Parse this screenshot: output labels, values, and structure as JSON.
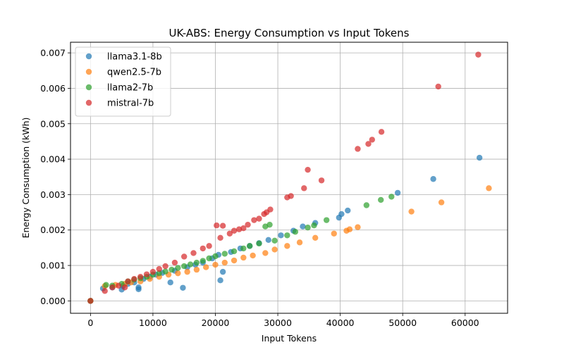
{
  "chart_data": {
    "type": "scatter",
    "title": "UK-ABS: Energy Consumption vs Input Tokens",
    "xlabel": "Input Tokens",
    "ylabel": "Energy Consumption (kWh)",
    "xlim": [
      -3200,
      66800
    ],
    "ylim": [
      -0.00035,
      0.0073
    ],
    "xticks": [
      0,
      10000,
      20000,
      30000,
      40000,
      50000,
      60000
    ],
    "xtick_labels": [
      "0",
      "10000",
      "20000",
      "30000",
      "40000",
      "50000",
      "60000"
    ],
    "yticks": [
      0,
      0.001,
      0.002,
      0.003,
      0.004,
      0.005,
      0.006,
      0.007
    ],
    "ytick_labels": [
      "0.000",
      "0.001",
      "0.002",
      "0.003",
      "0.004",
      "0.005",
      "0.006",
      "0.007"
    ],
    "grid": true,
    "legend_position": "top-left",
    "series": [
      {
        "name": "llama3.1-8b",
        "color": "#1f77b4",
        "points": [
          [
            0,
            0
          ],
          [
            2000,
            0.00035
          ],
          [
            3500,
            0.00038
          ],
          [
            5000,
            0.00032
          ],
          [
            5200,
            0.00042
          ],
          [
            6000,
            0.00048
          ],
          [
            7000,
            0.00052
          ],
          [
            7700,
            0.00033
          ],
          [
            7700,
            0.00038
          ],
          [
            8500,
            0.00062
          ],
          [
            9500,
            0.00068
          ],
          [
            10500,
            0.00074
          ],
          [
            11500,
            0.00079
          ],
          [
            12800,
            0.00052
          ],
          [
            13500,
            0.00085
          ],
          [
            14800,
            0.00037
          ],
          [
            15500,
            0.00095
          ],
          [
            16800,
            0.00102
          ],
          [
            18000,
            0.00108
          ],
          [
            19500,
            0.0012
          ],
          [
            20500,
            0.0013
          ],
          [
            20800,
            0.00058
          ],
          [
            21200,
            0.00082
          ],
          [
            22500,
            0.00138
          ],
          [
            24000,
            0.00148
          ],
          [
            25500,
            0.00155
          ],
          [
            27000,
            0.00163
          ],
          [
            28500,
            0.00172
          ],
          [
            30500,
            0.00185
          ],
          [
            32500,
            0.00198
          ],
          [
            34000,
            0.0021
          ],
          [
            36000,
            0.0022
          ],
          [
            39800,
            0.00235
          ],
          [
            40200,
            0.00245
          ],
          [
            41200,
            0.00255
          ],
          [
            49200,
            0.00305
          ],
          [
            54900,
            0.00344
          ],
          [
            62300,
            0.00404
          ]
        ]
      },
      {
        "name": "qwen2.5-7b",
        "color": "#ff7f0e",
        "points": [
          [
            0,
            0
          ],
          [
            2300,
            0.00042
          ],
          [
            4000,
            0.00045
          ],
          [
            5500,
            0.00048
          ],
          [
            6500,
            0.00052
          ],
          [
            8000,
            0.00055
          ],
          [
            9500,
            0.00062
          ],
          [
            11000,
            0.00068
          ],
          [
            12500,
            0.00074
          ],
          [
            14000,
            0.00078
          ],
          [
            15500,
            0.00082
          ],
          [
            17000,
            0.00088
          ],
          [
            18500,
            0.00095
          ],
          [
            20000,
            0.00102
          ],
          [
            21500,
            0.00108
          ],
          [
            23000,
            0.00114
          ],
          [
            24500,
            0.00122
          ],
          [
            26000,
            0.00128
          ],
          [
            28000,
            0.00135
          ],
          [
            29500,
            0.00145
          ],
          [
            31500,
            0.00155
          ],
          [
            33500,
            0.00165
          ],
          [
            36000,
            0.00178
          ],
          [
            39000,
            0.0019
          ],
          [
            41000,
            0.00198
          ],
          [
            41500,
            0.00202
          ],
          [
            42800,
            0.00208
          ],
          [
            51400,
            0.00252
          ],
          [
            56200,
            0.00278
          ],
          [
            63800,
            0.00318
          ]
        ]
      },
      {
        "name": "llama2-7b",
        "color": "#2ca02c",
        "points": [
          [
            0,
            0
          ],
          [
            2500,
            0.00045
          ],
          [
            3500,
            0.00043
          ],
          [
            5000,
            0.00048
          ],
          [
            6000,
            0.00055
          ],
          [
            7000,
            0.0006
          ],
          [
            8000,
            0.00064
          ],
          [
            9000,
            0.00068
          ],
          [
            10000,
            0.00074
          ],
          [
            11000,
            0.00078
          ],
          [
            12000,
            0.00083
          ],
          [
            13000,
            0.00088
          ],
          [
            14000,
            0.00093
          ],
          [
            15000,
            0.00098
          ],
          [
            16000,
            0.00103
          ],
          [
            17000,
            0.00108
          ],
          [
            18000,
            0.00113
          ],
          [
            19000,
            0.0012
          ],
          [
            20000,
            0.00126
          ],
          [
            21500,
            0.00133
          ],
          [
            23000,
            0.0014
          ],
          [
            24500,
            0.00148
          ],
          [
            25500,
            0.00155
          ],
          [
            27000,
            0.00162
          ],
          [
            28000,
            0.0021
          ],
          [
            28700,
            0.00215
          ],
          [
            29500,
            0.0017
          ],
          [
            31500,
            0.00185
          ],
          [
            32800,
            0.00195
          ],
          [
            34800,
            0.00207
          ],
          [
            35800,
            0.00213
          ],
          [
            37800,
            0.00228
          ],
          [
            44200,
            0.0027
          ],
          [
            46500,
            0.00285
          ],
          [
            48200,
            0.00294
          ]
        ]
      },
      {
        "name": "mistral-7b",
        "color": "#d62728",
        "points": [
          [
            0,
            0
          ],
          [
            2300,
            0.00028
          ],
          [
            3500,
            0.00038
          ],
          [
            4500,
            0.00043
          ],
          [
            5500,
            0.00038
          ],
          [
            6000,
            0.00055
          ],
          [
            7000,
            0.00062
          ],
          [
            8000,
            0.00068
          ],
          [
            9000,
            0.00075
          ],
          [
            10000,
            0.00082
          ],
          [
            11000,
            0.0009
          ],
          [
            12000,
            0.00098
          ],
          [
            13500,
            0.00108
          ],
          [
            15000,
            0.00125
          ],
          [
            16500,
            0.00135
          ],
          [
            18000,
            0.00148
          ],
          [
            19000,
            0.00155
          ],
          [
            20200,
            0.00213
          ],
          [
            20800,
            0.00178
          ],
          [
            21200,
            0.00212
          ],
          [
            22300,
            0.0019
          ],
          [
            23000,
            0.00198
          ],
          [
            23800,
            0.00202
          ],
          [
            24500,
            0.00205
          ],
          [
            25200,
            0.00215
          ],
          [
            26200,
            0.00228
          ],
          [
            27000,
            0.00232
          ],
          [
            27800,
            0.00245
          ],
          [
            28200,
            0.0025
          ],
          [
            28800,
            0.00258
          ],
          [
            31500,
            0.00292
          ],
          [
            32100,
            0.00296
          ],
          [
            34200,
            0.00318
          ],
          [
            34800,
            0.0037
          ],
          [
            37000,
            0.0034
          ],
          [
            42800,
            0.00429
          ],
          [
            44500,
            0.00443
          ],
          [
            45100,
            0.00455
          ],
          [
            46600,
            0.00477
          ],
          [
            55700,
            0.00605
          ],
          [
            62100,
            0.00695
          ]
        ]
      }
    ]
  }
}
